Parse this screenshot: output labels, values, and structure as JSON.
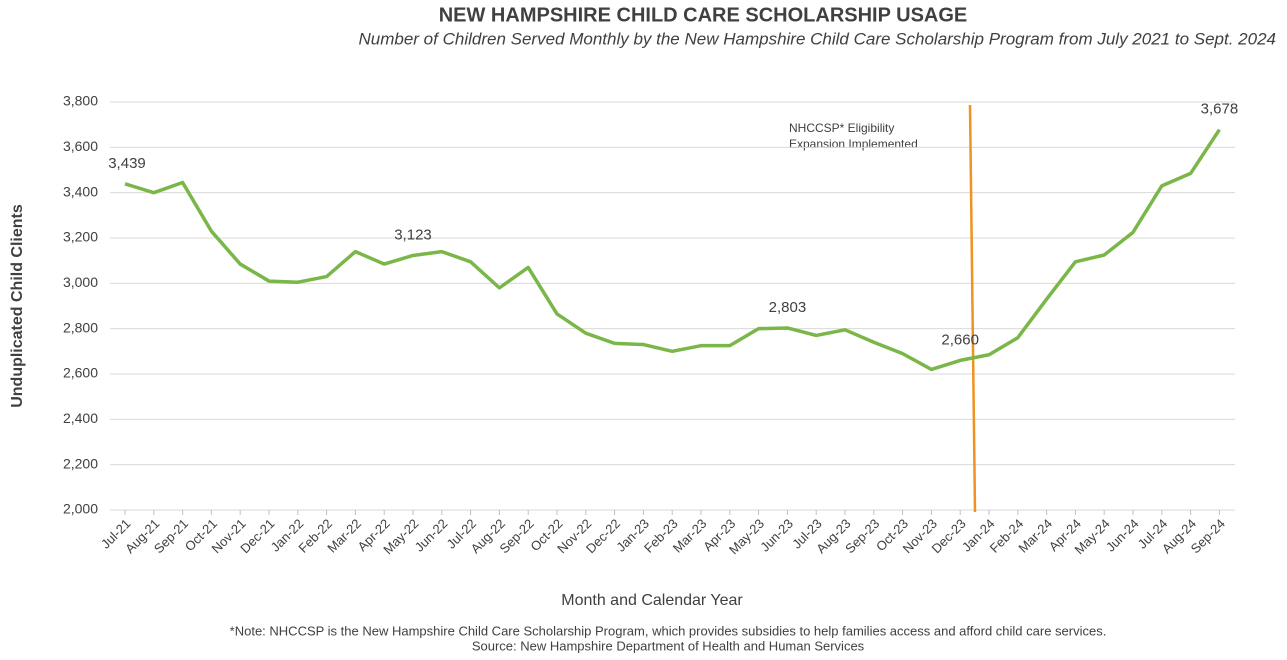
{
  "chart_data": {
    "type": "line",
    "title": "NEW HAMPSHIRE CHILD CARE SCHOLARSHIP USAGE",
    "subtitle": "Number of Children Served Monthly by the New Hampshire Child Care Scholarship Program from July 2021 to Sept. 2024",
    "x_label": "Month and Calendar Year",
    "y_label": "Unduplicated Child Clients",
    "categories": [
      "Jul-21",
      "Aug-21",
      "Sep-21",
      "Oct-21",
      "Nov-21",
      "Dec-21",
      "Jan-22",
      "Feb-22",
      "Mar-22",
      "Apr-22",
      "May-22",
      "Jun-22",
      "Jul-22",
      "Aug-22",
      "Sep-22",
      "Oct-22",
      "Nov-22",
      "Dec-22",
      "Jan-23",
      "Feb-23",
      "Mar-23",
      "Apr-23",
      "May-23",
      "Jun-23",
      "Jul-23",
      "Aug-23",
      "Sep-23",
      "Oct-23",
      "Nov-23",
      "Dec-23",
      "Jan-24",
      "Feb-24",
      "Mar-24",
      "Apr-24",
      "May-24",
      "Jun-24",
      "Jul-24",
      "Aug-24",
      "Sep-24"
    ],
    "series": [
      {
        "name": "Unduplicated Child Clients",
        "color": "#7ab648",
        "values": [
          3439,
          3400,
          3445,
          3230,
          3085,
          3010,
          3005,
          3030,
          3140,
          3085,
          3123,
          3140,
          3095,
          2980,
          3070,
          2865,
          2780,
          2735,
          2730,
          2700,
          2725,
          2725,
          2800,
          2803,
          2770,
          2795,
          2740,
          2690,
          2620,
          2660,
          2685,
          2760,
          2930,
          3095,
          3125,
          3225,
          3430,
          3485,
          3678
        ],
        "value_labels": [
          "3,439",
          null,
          null,
          null,
          null,
          null,
          null,
          null,
          null,
          null,
          "3,123",
          null,
          null,
          null,
          null,
          null,
          null,
          null,
          null,
          null,
          null,
          null,
          null,
          "2,803",
          null,
          null,
          null,
          null,
          null,
          "2,660",
          null,
          null,
          null,
          null,
          null,
          null,
          null,
          null,
          "3,678"
        ]
      }
    ],
    "ylim": [
      2000,
      3800
    ],
    "yticks": [
      {
        "value": 2000,
        "label": "2,000"
      },
      {
        "value": 2200,
        "label": "2,200"
      },
      {
        "value": 2400,
        "label": "2,400"
      },
      {
        "value": 2600,
        "label": "2,600"
      },
      {
        "value": 2800,
        "label": "2,800"
      },
      {
        "value": 3000,
        "label": "3,000"
      },
      {
        "value": 3200,
        "label": "3,200"
      },
      {
        "value": 3400,
        "label": "3,400"
      },
      {
        "value": 3600,
        "label": "3,600"
      },
      {
        "value": 3800,
        "label": "3,800"
      }
    ],
    "grid": true,
    "annotation": {
      "lines": [
        "NHCCSP* Eligibility",
        "Expansion Implemented"
      ],
      "color": "#f0921e"
    },
    "notes": [
      "*Note: NHCCSP is the New Hampshire Child Care Scholarship Program, which provides subsidies to help families access and afford child care services.",
      "Source: New Hampshire Department of Health and Human Services"
    ]
  }
}
